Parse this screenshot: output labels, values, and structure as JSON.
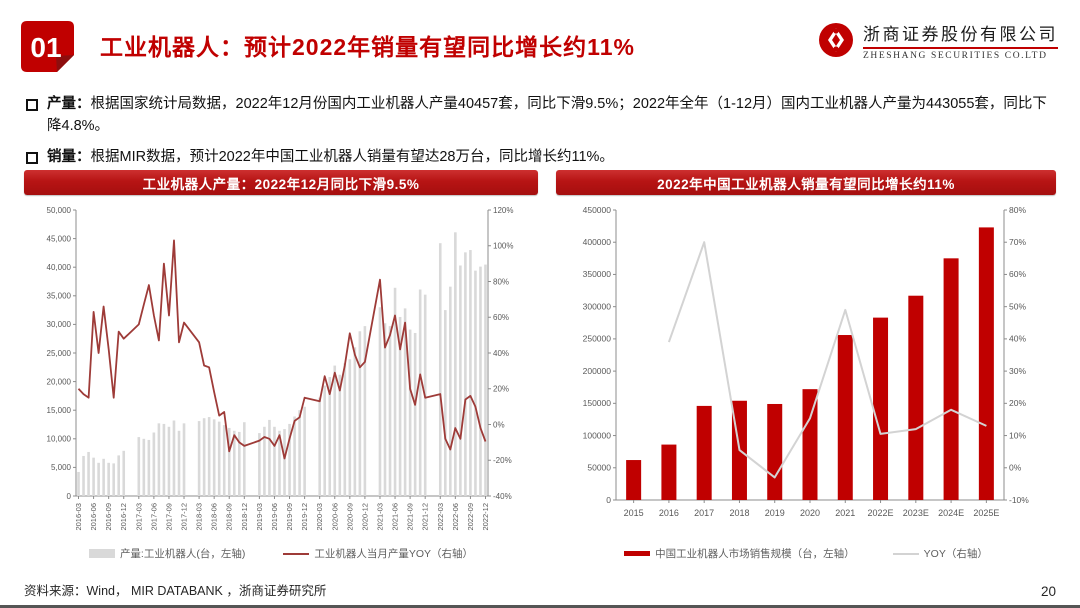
{
  "header": {
    "badge": "01",
    "title": "工业机器人：预计2022年销量有望同比增长约11%",
    "logo": {
      "cn": "浙商证券股份有限公司",
      "en": "ZHESHANG SECURITIES CO.LTD"
    }
  },
  "bullets": [
    {
      "label": "产量：",
      "text": "根据国家统计局数据，2022年12月份国内工业机器人产量40457套，同比下滑9.5%；2022年全年（1-12月）国内工业机器人产量为443055套，同比下降4.8%。"
    },
    {
      "label": "销量：",
      "text": "根据MIR数据，预计2022年中国工业机器人销量有望达28万台，同比增长约11%。"
    }
  ],
  "footer": {
    "source": "资料来源：Wind， MIR DATABANK ，浙商证券研究所",
    "page": "20"
  },
  "colors": {
    "primary_red": "#c00000",
    "line_dark_red": "#9e3b38",
    "bar_gray": "#d9d9d9",
    "line_gray": "#d3d3d3",
    "axis_gray": "#8c8c8c",
    "tick_text": "#595959"
  },
  "chart_data": [
    {
      "type": "bar+line",
      "title": "工业机器人产量：2022年12月同比下滑9.5%",
      "legend": [
        "产量:工业机器人(台，左轴)",
        "工业机器人当月产量YOY（右轴）"
      ],
      "left_axis": {
        "min": 0,
        "max": 50000,
        "step": 5000
      },
      "right_axis": {
        "min": -40,
        "max": 120,
        "step": 20,
        "unit": "%"
      },
      "x_tick_format": "YYYY-MM",
      "years": [
        "2016",
        "2017",
        "2018",
        "2019",
        "2020",
        "2021",
        "2022"
      ],
      "months": [
        "03",
        "04",
        "05",
        "06",
        "07",
        "08",
        "09",
        "10",
        "11",
        "12"
      ],
      "bars_by_year": {
        "2016": [
          4200,
          7000,
          7700,
          6700,
          5800,
          6500,
          5800,
          5700,
          7100,
          7900
        ],
        "2017": [
          10300,
          10000,
          9800,
          11100,
          12700,
          12600,
          12100,
          13200,
          11400,
          12700
        ],
        "2018": [
          13100,
          13600,
          13800,
          13400,
          13000,
          12400,
          11900,
          11400,
          11200,
          12900
        ],
        "2019": [
          11000,
          12100,
          13300,
          12100,
          11400,
          11700,
          12600,
          13900,
          15000,
          15600
        ],
        "2020": [
          17200,
          19300,
          20800,
          22800,
          21200,
          23200,
          23900,
          26000,
          28800,
          29700
        ],
        "2021": [
          33000,
          30200,
          29700,
          36400,
          31300,
          32800,
          29100,
          28500,
          36100,
          35200
        ],
        "2022": [
          44200,
          32500,
          36600,
          46100,
          40300,
          42600,
          43000,
          39400,
          40100,
          40457
        ]
      },
      "yoy_by_year": {
        "2016": [
          20,
          17,
          15,
          63,
          40,
          66,
          42,
          15,
          52,
          48
        ],
        "2017": [
          56,
          67,
          78,
          61,
          47,
          90,
          61,
          103,
          46,
          57
        ],
        "2018": [
          46,
          33,
          32,
          18,
          5,
          7,
          -15,
          -6,
          -10,
          -12
        ],
        "2019": [
          -9,
          -7,
          -8,
          -12,
          -6,
          -19,
          -8,
          2,
          4,
          15
        ],
        "2020": [
          13,
          27,
          17,
          29,
          19,
          33,
          51,
          39,
          32,
          35
        ],
        "2021": [
          81,
          43,
          50,
          61,
          42,
          57,
          20,
          11,
          28,
          15
        ],
        "2022": [
          17,
          -8,
          -14,
          -2,
          -8,
          14,
          16,
          10,
          -2,
          -9.5
        ]
      }
    },
    {
      "type": "bar+line",
      "title": "2022年中国工业机器人销量有望同比增长约11%",
      "legend": [
        "中国工业机器人市场销售规模（台，左轴）",
        "YOY（右轴）"
      ],
      "left_axis": {
        "min": 0,
        "max": 450000,
        "step": 50000
      },
      "right_axis": {
        "min": -10,
        "max": 80,
        "step": 10,
        "unit": "%"
      },
      "categories": [
        "2015",
        "2016",
        "2017",
        "2018",
        "2019",
        "2020",
        "2021",
        "2022E",
        "2023E",
        "2024E",
        "2025E"
      ],
      "sales": [
        62000,
        86000,
        146000,
        154000,
        149000,
        172000,
        256000,
        283000,
        317000,
        375000,
        423000
      ],
      "yoy": [
        null,
        39,
        70,
        5.5,
        -3,
        15.4,
        49,
        10.5,
        12,
        18,
        13
      ]
    }
  ]
}
